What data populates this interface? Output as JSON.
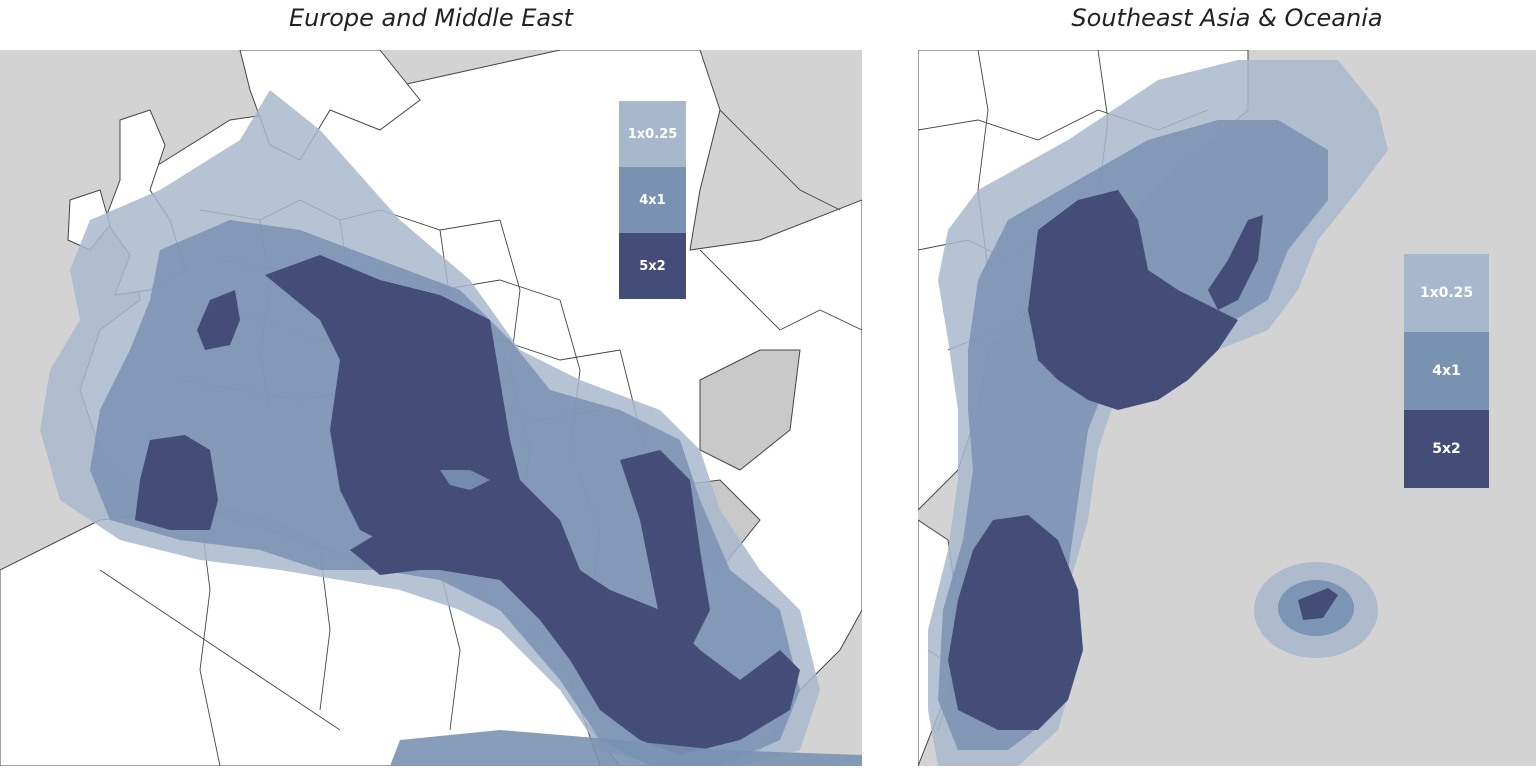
{
  "maps": {
    "left": {
      "title": "Europe and Middle East"
    },
    "right": {
      "title": "Southeast Asia & Oceania"
    }
  },
  "legend": {
    "items": [
      {
        "label": "1x0.25",
        "color": "#a8b8cc"
      },
      {
        "label": "4x1",
        "color": "#7a92b2"
      },
      {
        "label": "5x2",
        "color": "#434d77"
      }
    ]
  },
  "colors": {
    "land_other": "#d3d3d3",
    "land_region": "#ffffff",
    "border": "#3a3a3a",
    "coverage_light": "#a8b8cc",
    "coverage_mid": "#7a92b2",
    "coverage_dark": "#434d77"
  }
}
